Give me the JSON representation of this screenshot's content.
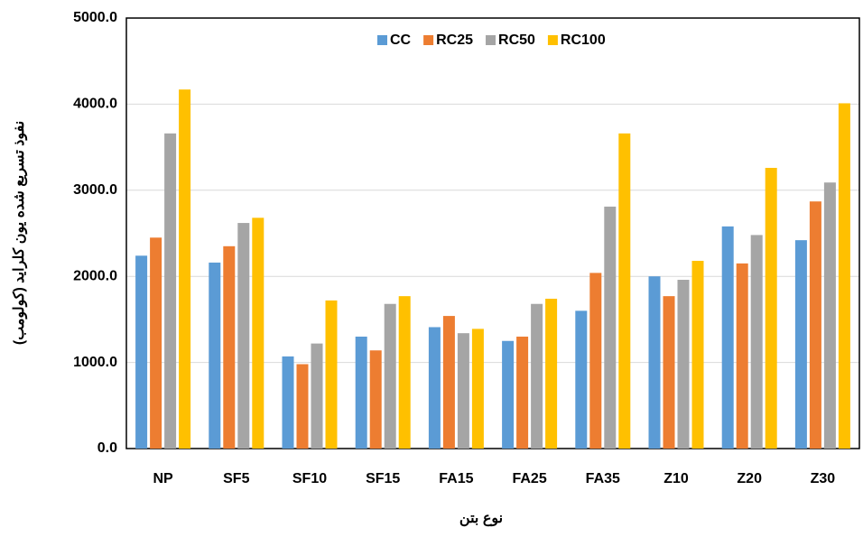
{
  "chart_data": {
    "type": "bar",
    "x_label": "نوع بتن",
    "y_label": "نفوذ تسریع شده یون کلراید (کولومب)",
    "categories": [
      "NP",
      "SF5",
      "SF10",
      "SF15",
      "FA15",
      "FA25",
      "FA35",
      "Z10",
      "Z20",
      "Z30"
    ],
    "series": [
      {
        "name": "CC",
        "color": "#5b9bd5",
        "values": [
          2240,
          2160,
          1070,
          1300,
          1410,
          1250,
          1600,
          2000,
          2580,
          2420
        ]
      },
      {
        "name": "RC25",
        "color": "#ed7d31",
        "values": [
          2450,
          2350,
          980,
          1140,
          1540,
          1300,
          2040,
          1770,
          2150,
          2870
        ]
      },
      {
        "name": "RC50",
        "color": "#a5a5a5",
        "values": [
          3660,
          2620,
          1220,
          1680,
          1340,
          1680,
          2810,
          1960,
          2480,
          3090
        ]
      },
      {
        "name": "RC100",
        "color": "#ffc000",
        "values": [
          4170,
          2680,
          1720,
          1770,
          1390,
          1740,
          3660,
          2180,
          3260,
          4010
        ]
      }
    ],
    "ylim": [
      0,
      5000
    ],
    "yticks": [
      {
        "value": 0,
        "label": "0.0"
      },
      {
        "value": 1000,
        "label": "1000.0"
      },
      {
        "value": 2000,
        "label": "2000.0"
      },
      {
        "value": 3000,
        "label": "3000.0"
      },
      {
        "value": 4000,
        "label": "4000.0"
      },
      {
        "value": 5000,
        "label": "5000.0"
      }
    ],
    "grid": true,
    "legend": "top"
  }
}
